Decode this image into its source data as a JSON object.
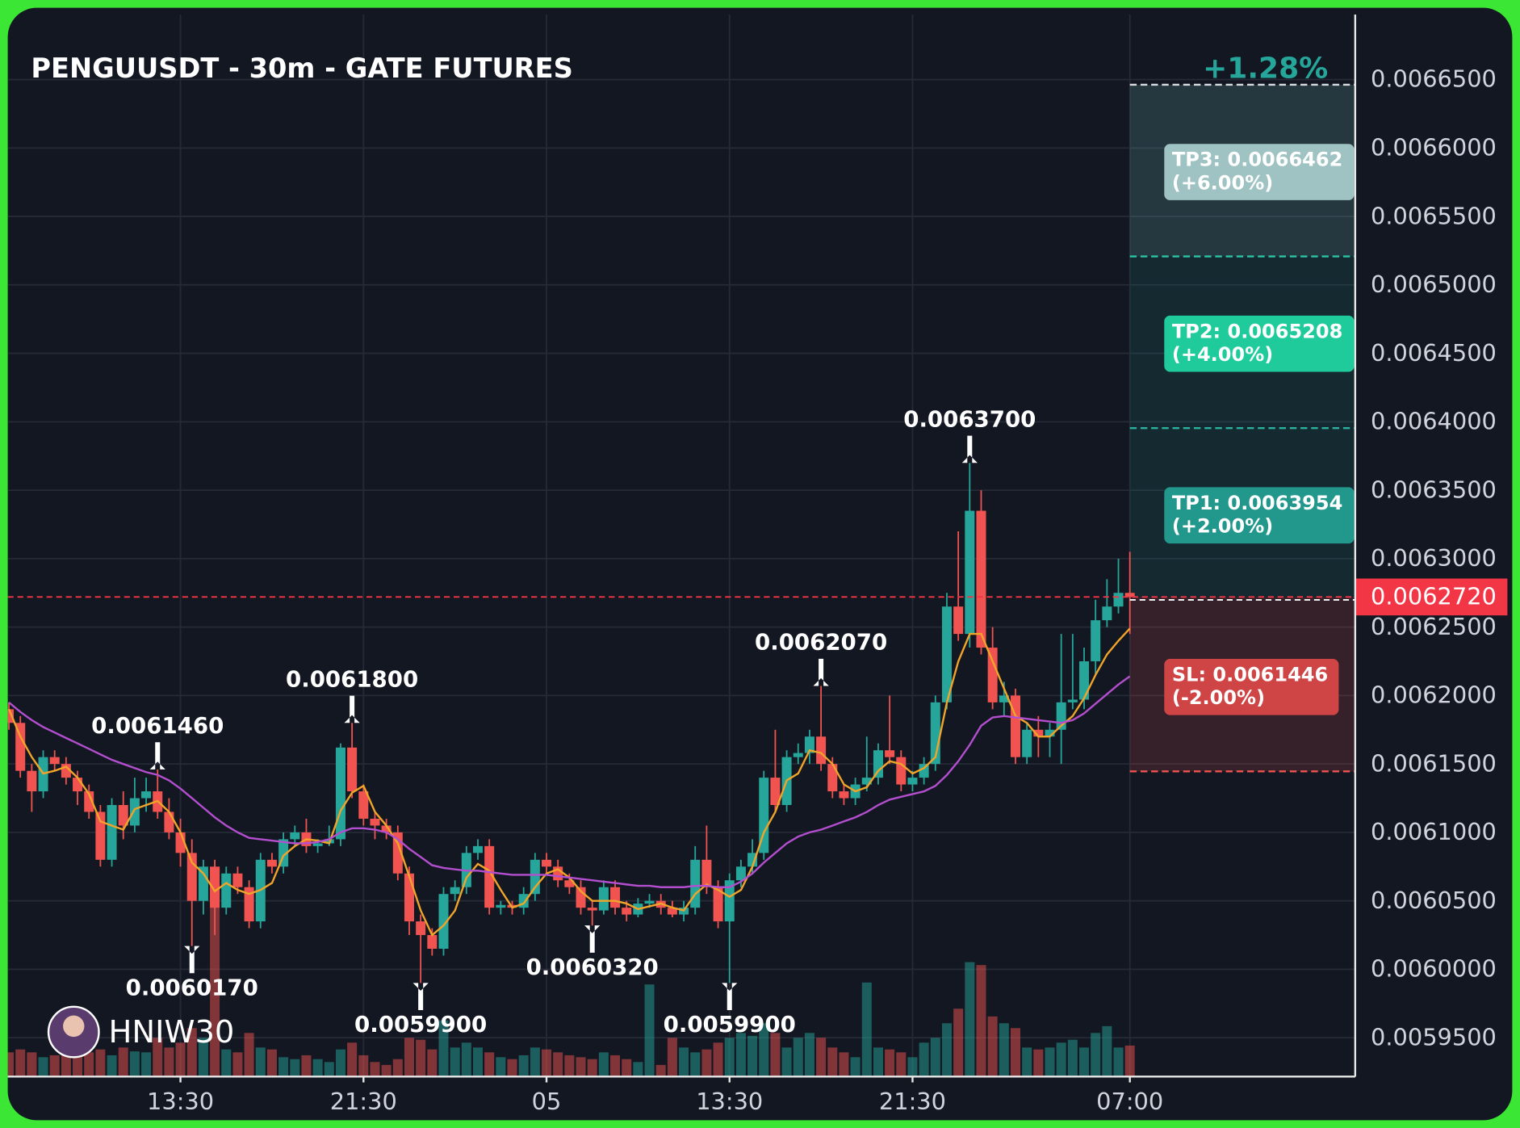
{
  "chart_data": {
    "type": "candlestick",
    "title": "PENGUUSDT - 30m - GATE FUTURES",
    "watermark": "HNIW30",
    "up_color": "#26a69a",
    "down_color": "#f05350",
    "open": [
      0.00619,
      0.00618,
      0.006145,
      0.00613,
      0.006155,
      0.00615,
      0.00614,
      0.00613,
      0.006115,
      0.00608,
      0.00612,
      0.006105,
      0.006125,
      0.00613,
      0.006115,
      0.0061,
      0.006085,
      0.00605,
      0.006075,
      0.006045,
      0.00607,
      0.00606,
      0.006035,
      0.00608,
      0.006075,
      0.006095,
      0.0061,
      0.00609,
      0.006092,
      0.006095,
      0.006162,
      0.00613,
      0.00611,
      0.006105,
      0.0061,
      0.00607,
      0.006035,
      0.006025,
      0.006015,
      0.006055,
      0.00606,
      0.006085,
      0.00609,
      0.006045,
      0.006047,
      0.006045,
      0.006055,
      0.00608,
      0.006075,
      0.006065,
      0.00606,
      0.006045,
      0.006043,
      0.00606,
      0.006045,
      0.00604,
      0.006048,
      0.00605,
      0.006045,
      0.00604,
      0.006045,
      0.00608,
      0.00606,
      0.006035,
      0.006065,
      0.006075,
      0.006085,
      0.00614,
      0.00612,
      0.006155,
      0.006158,
      0.00617,
      0.00615,
      0.00613,
      0.006125,
      0.006135,
      0.00614,
      0.00616,
      0.006155,
      0.006135,
      0.00614,
      0.00615,
      0.006195,
      0.006265,
      0.006245,
      0.006335,
      0.006235,
      0.006195,
      0.0062,
      0.006155,
      0.006175,
      0.00617,
      0.006175,
      0.006195,
      0.006197,
      0.006225,
      0.006255,
      0.006265,
      0.006275
    ],
    "high": [
      0.006195,
      0.006185,
      0.00615,
      0.00616,
      0.00616,
      0.006155,
      0.006145,
      0.006135,
      0.00612,
      0.006125,
      0.00613,
      0.00614,
      0.00614,
      0.006146,
      0.006125,
      0.00611,
      0.006095,
      0.00608,
      0.00608,
      0.006075,
      0.006075,
      0.006065,
      0.006085,
      0.006085,
      0.0061,
      0.006105,
      0.00611,
      0.006095,
      0.006105,
      0.006165,
      0.00618,
      0.006135,
      0.006115,
      0.00611,
      0.006105,
      0.006075,
      0.00604,
      0.00603,
      0.00606,
      0.006065,
      0.00609,
      0.006095,
      0.006095,
      0.00605,
      0.00605,
      0.00606,
      0.006085,
      0.006085,
      0.00608,
      0.00607,
      0.006065,
      0.00605,
      0.006065,
      0.006065,
      0.00605,
      0.006052,
      0.006055,
      0.006055,
      0.00605,
      0.00605,
      0.00609,
      0.006105,
      0.006065,
      0.00607,
      0.00608,
      0.006095,
      0.006145,
      0.006175,
      0.00616,
      0.006165,
      0.006175,
      0.006207,
      0.006155,
      0.006135,
      0.00614,
      0.00617,
      0.006165,
      0.0062,
      0.00616,
      0.006145,
      0.006155,
      0.0062,
      0.006275,
      0.00632,
      0.00637,
      0.00635,
      0.00625,
      0.00621,
      0.006205,
      0.00618,
      0.006185,
      0.00618,
      0.006245,
      0.006245,
      0.006235,
      0.00627,
      0.006285,
      0.0063,
      0.006305
    ],
    "low": [
      0.006175,
      0.00614,
      0.006115,
      0.006125,
      0.006145,
      0.006135,
      0.00612,
      0.00611,
      0.006075,
      0.006075,
      0.006095,
      0.0061,
      0.006115,
      0.00611,
      0.006095,
      0.006075,
      0.006017,
      0.00604,
      0.006025,
      0.00604,
      0.006055,
      0.00603,
      0.00603,
      0.00607,
      0.00607,
      0.00609,
      0.006085,
      0.006085,
      0.00609,
      0.00609,
      0.006125,
      0.006105,
      0.006095,
      0.006095,
      0.006065,
      0.006025,
      0.00599,
      0.00601,
      0.00601,
      0.00605,
      0.006055,
      0.00608,
      0.00604,
      0.00604,
      0.00604,
      0.00604,
      0.00605,
      0.00607,
      0.00606,
      0.006055,
      0.00604,
      0.006032,
      0.00604,
      0.00604,
      0.006035,
      0.006038,
      0.006045,
      0.00604,
      0.006038,
      0.006035,
      0.00604,
      0.006055,
      0.00603,
      0.00599,
      0.00606,
      0.00607,
      0.00608,
      0.006115,
      0.006115,
      0.00615,
      0.00615,
      0.006145,
      0.006125,
      0.00612,
      0.00612,
      0.00613,
      0.006135,
      0.00615,
      0.00613,
      0.00613,
      0.006135,
      0.006145,
      0.00619,
      0.00624,
      0.006235,
      0.00623,
      0.00619,
      0.006185,
      0.00615,
      0.00615,
      0.006155,
      0.006155,
      0.00615,
      0.00619,
      0.00619,
      0.006215,
      0.00625,
      0.00626,
      0.006245
    ],
    "close": [
      0.00618,
      0.006145,
      0.00613,
      0.006155,
      0.00615,
      0.00614,
      0.00613,
      0.006115,
      0.00608,
      0.00612,
      0.006105,
      0.006125,
      0.00613,
      0.006115,
      0.0061,
      0.006085,
      0.00605,
      0.006075,
      0.006045,
      0.00607,
      0.00606,
      0.006035,
      0.00608,
      0.006075,
      0.006095,
      0.0061,
      0.00609,
      0.006092,
      0.006095,
      0.006162,
      0.00613,
      0.00611,
      0.006105,
      0.0061,
      0.00607,
      0.006035,
      0.006025,
      0.006015,
      0.006055,
      0.00606,
      0.006085,
      0.00609,
      0.006045,
      0.006047,
      0.006045,
      0.006055,
      0.00608,
      0.006075,
      0.006065,
      0.00606,
      0.006045,
      0.006043,
      0.00606,
      0.006045,
      0.00604,
      0.006048,
      0.00605,
      0.006045,
      0.00604,
      0.006045,
      0.00608,
      0.00606,
      0.006035,
      0.006065,
      0.006075,
      0.006085,
      0.00614,
      0.00612,
      0.006155,
      0.006158,
      0.00617,
      0.00615,
      0.00613,
      0.006125,
      0.006135,
      0.00614,
      0.00616,
      0.006155,
      0.006135,
      0.00614,
      0.00615,
      0.006195,
      0.006265,
      0.006245,
      0.006335,
      0.006235,
      0.006195,
      0.0062,
      0.006155,
      0.006175,
      0.00617,
      0.006175,
      0.006195,
      0.006197,
      0.006225,
      0.006255,
      0.006265,
      0.006275,
      0.006272
    ],
    "volume": [
      25,
      28,
      25,
      20,
      22,
      25,
      30,
      25,
      28,
      22,
      30,
      26,
      25,
      40,
      30,
      35,
      50,
      40,
      215,
      28,
      25,
      45,
      30,
      28,
      20,
      18,
      22,
      18,
      15,
      28,
      35,
      22,
      15,
      12,
      18,
      40,
      38,
      28,
      58,
      30,
      35,
      30,
      25,
      20,
      18,
      22,
      30,
      28,
      25,
      22,
      20,
      18,
      25,
      22,
      18,
      15,
      95,
      12,
      40,
      30,
      25,
      28,
      35,
      40,
      45,
      42,
      55,
      45,
      30,
      40,
      45,
      40,
      30,
      25,
      20,
      97,
      30,
      28,
      25,
      20,
      35,
      40,
      55,
      70,
      118,
      115,
      62,
      55,
      50,
      30,
      28,
      30,
      35,
      38,
      30,
      45,
      52,
      30,
      32
    ],
    "ma_lines": [
      {
        "color": "#f0a429",
        "values": [
          0.00619,
          0.00617,
          0.006155,
          0.006143,
          0.006145,
          0.006148,
          0.00614,
          0.006128,
          0.006108,
          0.006105,
          0.006102,
          0.006117,
          0.00612,
          0.006123,
          0.006115,
          0.0061,
          0.006078,
          0.00607,
          0.006057,
          0.006063,
          0.006058,
          0.006055,
          0.006058,
          0.006063,
          0.006083,
          0.00609,
          0.006095,
          0.006094,
          0.006092,
          0.006116,
          0.006129,
          0.006134,
          0.006115,
          0.006105,
          0.006092,
          0.006068,
          0.006043,
          0.006025,
          0.006032,
          0.006043,
          0.006067,
          0.006077,
          0.006072,
          0.006058,
          0.006045,
          0.006048,
          0.00606,
          0.00607,
          0.006073,
          0.006067,
          0.006057,
          0.00605,
          0.00605,
          0.00605,
          0.006048,
          0.006044,
          0.006046,
          0.006048,
          0.006045,
          0.006043,
          0.006055,
          0.006062,
          0.006058,
          0.006053,
          0.006058,
          0.006075,
          0.0061,
          0.006115,
          0.006138,
          0.006143,
          0.00616,
          0.006158,
          0.00615,
          0.006135,
          0.00613,
          0.006133,
          0.006145,
          0.006152,
          0.00615,
          0.006143,
          0.006147,
          0.006155,
          0.006195,
          0.006225,
          0.006245,
          0.006245,
          0.006225,
          0.006205,
          0.006185,
          0.00618,
          0.00617,
          0.00617,
          0.006178,
          0.006185,
          0.006198,
          0.006215,
          0.00623,
          0.00624,
          0.006249
        ]
      },
      {
        "color": "#b34fce",
        "values": [
          0.006195,
          0.006188,
          0.006182,
          0.006177,
          0.006173,
          0.006169,
          0.006165,
          0.006161,
          0.006157,
          0.006153,
          0.00615,
          0.006147,
          0.006144,
          0.006142,
          0.006138,
          0.006132,
          0.006125,
          0.006118,
          0.006111,
          0.006105,
          0.0061,
          0.006096,
          0.006095,
          0.006094,
          0.006093,
          0.006092,
          0.006092,
          0.006093,
          0.006095,
          0.0061,
          0.006103,
          0.006103,
          0.006102,
          0.0061,
          0.006095,
          0.006088,
          0.006082,
          0.006076,
          0.006074,
          0.006073,
          0.006072,
          0.006072,
          0.006071,
          0.00607,
          0.006069,
          0.006069,
          0.006069,
          0.006069,
          0.006068,
          0.006067,
          0.006066,
          0.006065,
          0.006064,
          0.006063,
          0.006062,
          0.006061,
          0.006061,
          0.00606,
          0.00606,
          0.00606,
          0.006061,
          0.006061,
          0.00606,
          0.00606,
          0.006064,
          0.00607,
          0.006078,
          0.006085,
          0.006092,
          0.006097,
          0.0061,
          0.006102,
          0.006105,
          0.006108,
          0.006111,
          0.006115,
          0.00612,
          0.006124,
          0.006126,
          0.006128,
          0.00613,
          0.006134,
          0.006142,
          0.006152,
          0.006164,
          0.006178,
          0.006184,
          0.006185,
          0.006184,
          0.006183,
          0.006182,
          0.006181,
          0.00618,
          0.006182,
          0.006187,
          0.006194,
          0.006201,
          0.006208,
          0.006214
        ]
      }
    ],
    "xlim": [
      -0.1,
      117.7
    ],
    "xticks": [
      {
        "value": 15,
        "label": "13:30"
      },
      {
        "value": 31,
        "label": "21:30"
      },
      {
        "value": 47,
        "label": "05"
      },
      {
        "value": 63,
        "label": "13:30"
      },
      {
        "value": 79,
        "label": "21:30"
      },
      {
        "value": 98,
        "label": "07:00"
      }
    ],
    "ylim": [
      0.0059216,
      0.0066975
    ],
    "yticks": [
      {
        "value": 0.00595,
        "label": "0.0059500"
      },
      {
        "value": 0.006,
        "label": "0.0060000"
      },
      {
        "value": 0.00605,
        "label": "0.0060500"
      },
      {
        "value": 0.0061,
        "label": "0.0061000"
      },
      {
        "value": 0.00615,
        "label": "0.0061500"
      },
      {
        "value": 0.0062,
        "label": "0.0062000"
      },
      {
        "value": 0.00625,
        "label": "0.0062500"
      },
      {
        "value": 0.0063,
        "label": "0.0063000"
      },
      {
        "value": 0.00635,
        "label": "0.0063500"
      },
      {
        "value": 0.0064,
        "label": "0.0064000"
      },
      {
        "value": 0.00645,
        "label": "0.0064500"
      },
      {
        "value": 0.0065,
        "label": "0.0065000"
      },
      {
        "value": 0.00655,
        "label": "0.0065500"
      },
      {
        "value": 0.0066,
        "label": "0.0066000"
      },
      {
        "value": 0.00665,
        "label": "0.0066500"
      }
    ],
    "grid": true,
    "annotations": [
      {
        "index": 13,
        "kind": "high",
        "value": 0.006146,
        "label": "0.0061460"
      },
      {
        "index": 30,
        "kind": "high",
        "value": 0.00618,
        "label": "0.0061800"
      },
      {
        "index": 71,
        "kind": "high",
        "value": 0.006207,
        "label": "0.0062070"
      },
      {
        "index": 84,
        "kind": "high",
        "value": 0.00637,
        "label": "0.0063700"
      },
      {
        "index": 16,
        "kind": "low",
        "value": 0.006017,
        "label": "0.0060170"
      },
      {
        "index": 36,
        "kind": "low",
        "value": 0.00599,
        "label": "0.0059900"
      },
      {
        "index": 51,
        "kind": "low",
        "value": 0.006032,
        "label": "0.0060320"
      },
      {
        "index": 63,
        "kind": "low",
        "value": 0.00599,
        "label": "0.0059900"
      }
    ],
    "entry": {
      "value": 0.006272,
      "label": "0.0062720",
      "index": 98,
      "color": "#f23645",
      "change_label": "+1.28%"
    },
    "levels": [
      {
        "value": 0.0066462,
        "label": "TP3: 0.0066462",
        "change": "(+6.00%)",
        "color": "#9fc2c2",
        "line_color": "#d8dce0"
      },
      {
        "value": 0.0065208,
        "label": "TP2: 0.0065208",
        "change": "(+4.00%)",
        "color": "#1fcb9b",
        "line_color": "#2bc4a4"
      },
      {
        "value": 0.0063954,
        "label": "TP1: 0.0063954",
        "change": "(+2.00%)",
        "color": "#22978c",
        "line_color": "#2bb0a0"
      },
      {
        "value": 0.0061446,
        "label": "SL: 0.0061446",
        "change": "(-2.00%)",
        "color": "#cf4444",
        "line_color": "#f05350"
      }
    ]
  }
}
